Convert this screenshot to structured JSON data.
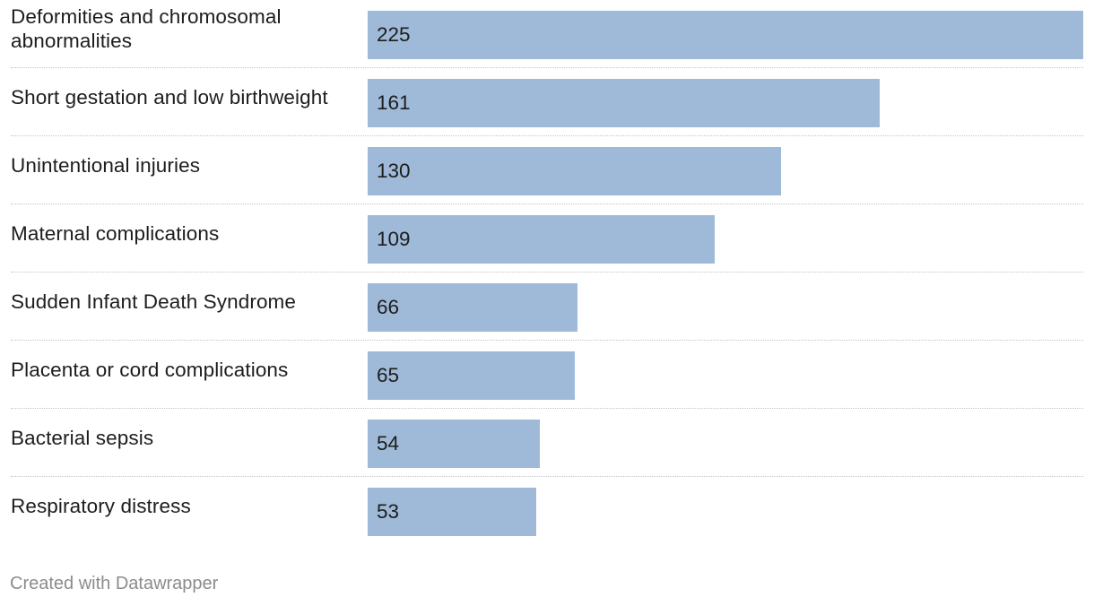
{
  "chart_data": {
    "type": "bar",
    "orientation": "horizontal",
    "categories": [
      "Deformities and chromosomal abnormalities",
      "Short gestation and low birthweight",
      "Unintentional injuries",
      "Maternal complications",
      "Sudden Infant Death Syndrome",
      "Placenta or cord complications",
      "Bacterial sepsis",
      "Respiratory distress"
    ],
    "values": [
      225,
      161,
      130,
      109,
      66,
      65,
      54,
      53
    ],
    "xlim": [
      0,
      225
    ],
    "grid": false,
    "bar_color": "#9ebad8",
    "data_labels": "inside-left"
  },
  "footer": {
    "credit": "Created with Datawrapper"
  }
}
